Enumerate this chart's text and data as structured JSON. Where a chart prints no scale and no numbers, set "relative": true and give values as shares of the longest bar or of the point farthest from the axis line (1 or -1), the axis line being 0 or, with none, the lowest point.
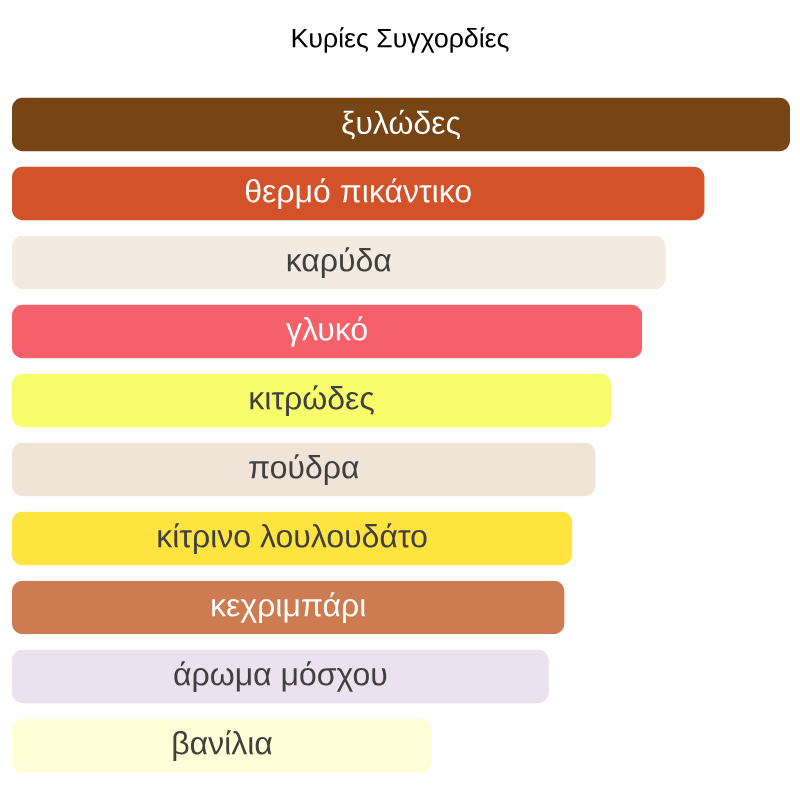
{
  "chart_data": {
    "type": "bar",
    "orientation": "horizontal",
    "relative": true,
    "title": "Κυρίες Συγχορδίες",
    "categories": [
      "ξυλώδες",
      "θερμό πικάντικο",
      "καρύδα",
      "γλυκό",
      "κιτρώδες",
      "πούδρα",
      "κίτρινο λουλουδάτο",
      "κεχριμπάρι",
      "άρωμα μόσχου",
      "βανίλια"
    ],
    "values": [
      1,
      0.89,
      0.84,
      0.81,
      0.77,
      0.75,
      0.72,
      0.71,
      0.69,
      0.54
    ],
    "colors": [
      "#774414",
      "#d4522a",
      "#f3ebdf",
      "#f5616b",
      "#f8fd6c",
      "#f0e4d8",
      "#ffe440",
      "#cd7c52",
      "#ebe1ef",
      "#fffed6"
    ]
  }
}
